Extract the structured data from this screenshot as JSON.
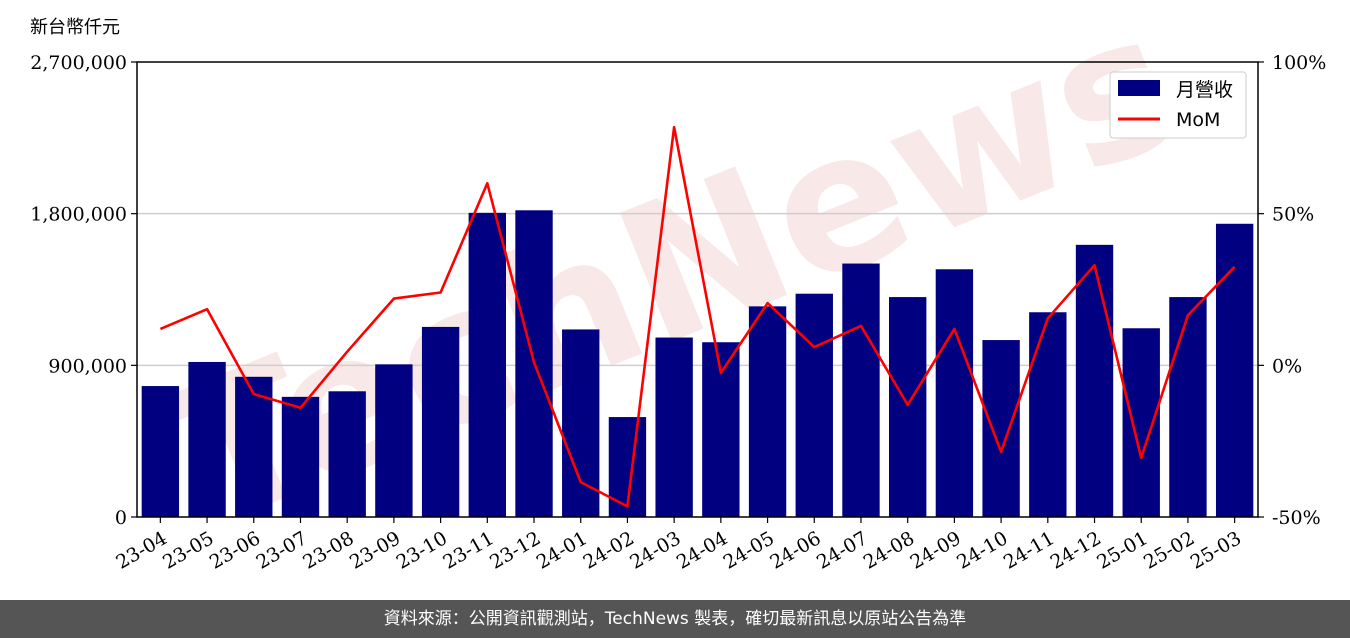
{
  "unit_label": "新台幣仟元",
  "watermark": "TechNews",
  "footer_text": "資料來源：公開資訊觀測站，TechNews 製表，確切最新訊息以原站公告為準",
  "legend": [
    {
      "label": "月營收",
      "type": "bar",
      "color": "#000080"
    },
    {
      "label": "MoM",
      "type": "line",
      "color": "#ff0000"
    }
  ],
  "chart_data": {
    "type": "bar",
    "categories": [
      "23-04",
      "23-05",
      "23-06",
      "23-07",
      "23-08",
      "23-09",
      "23-10",
      "23-11",
      "23-12",
      "24-01",
      "24-02",
      "24-03",
      "24-04",
      "24-05",
      "24-06",
      "24-07",
      "24-08",
      "24-09",
      "24-10",
      "24-11",
      "24-12",
      "25-01",
      "25-02",
      "25-03"
    ],
    "series": [
      {
        "name": "月營收",
        "type": "bar",
        "axis": "left",
        "color": "#000080",
        "values": [
          777000,
          920000,
          832000,
          713000,
          746000,
          906000,
          1128000,
          1805000,
          1820000,
          1113000,
          593000,
          1065000,
          1037000,
          1250000,
          1325000,
          1504000,
          1305000,
          1470000,
          1050000,
          1215000,
          1615000,
          1120000,
          1305000,
          1740000
        ]
      },
      {
        "name": "MoM",
        "type": "line",
        "axis": "right",
        "color": "#ff0000",
        "values": [
          12,
          18.5,
          -9.5,
          -14,
          4.5,
          22,
          24,
          60,
          1,
          -38.5,
          -46.5,
          78.5,
          -2.5,
          20.5,
          6,
          13,
          -13,
          12,
          -28.5,
          15.5,
          33,
          -30.5,
          16.5,
          32.5
        ]
      }
    ],
    "y_left": {
      "lim": [
        0,
        2700000
      ],
      "ticks": [
        "0",
        "900,000",
        "1,800,000",
        "2,700,000"
      ],
      "tick_values": [
        0,
        900000,
        1800000,
        2700000
      ]
    },
    "y_right": {
      "lim": [
        -50,
        100
      ],
      "ticks": [
        "-50%",
        "0%",
        "50%",
        "100%"
      ],
      "tick_values": [
        -50,
        0,
        50,
        100
      ]
    },
    "grid": "horizontal",
    "legend_position": "top-right"
  }
}
